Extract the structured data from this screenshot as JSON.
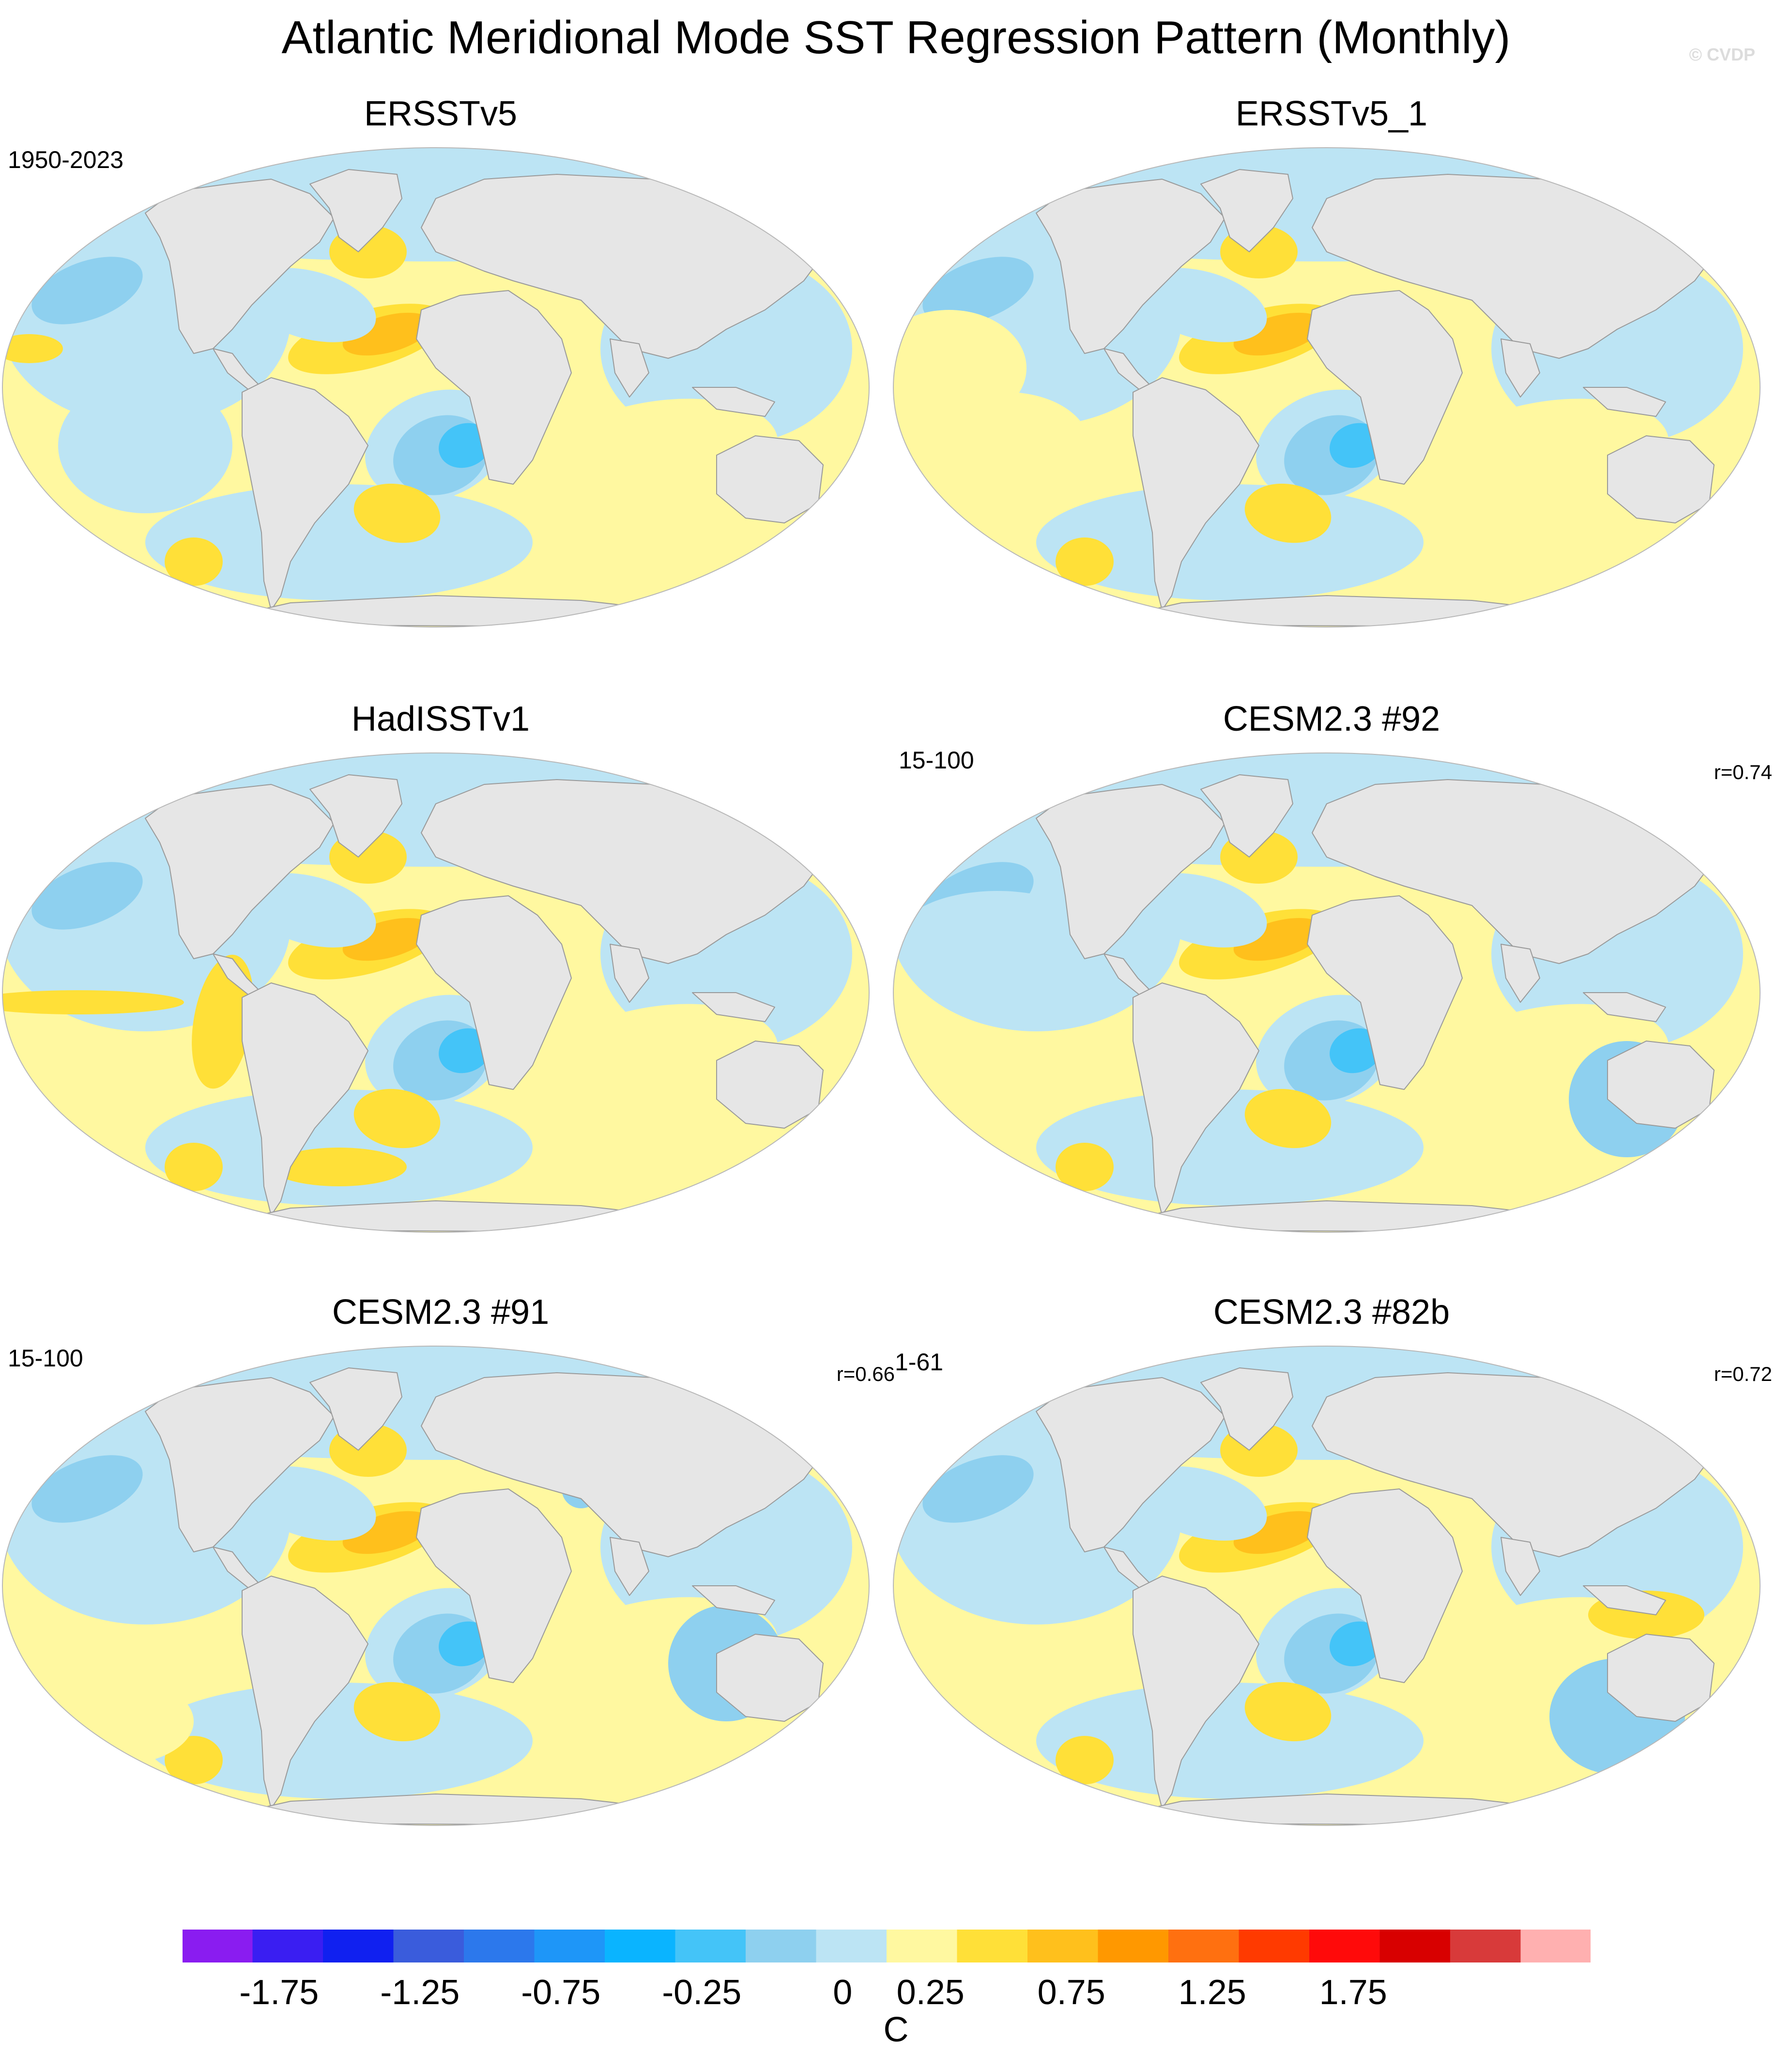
{
  "header": {
    "title": "Atlantic Meridional Mode SST Regression Pattern (Monthly)",
    "copyright": "© CVDP"
  },
  "panels": [
    {
      "title": "ERSSTv5",
      "period": "1950-2023",
      "corr": "",
      "variant": 0
    },
    {
      "title": "ERSSTv5_1",
      "period": "",
      "corr": "",
      "variant": 1
    },
    {
      "title": "HadISSTv1",
      "period": "",
      "corr": "",
      "variant": 2
    },
    {
      "title": "CESM2.3 #92",
      "period": "15-100",
      "corr": "r=0.74",
      "variant": 3
    },
    {
      "title": "CESM2.3 #91",
      "period": "15-100",
      "corr": "r=0.66",
      "variant": 4
    },
    {
      "title": "CESM2.3 #82b",
      "period": "1-61",
      "corr": "r=0.72",
      "variant": 5
    }
  ],
  "colorbar": {
    "unit": "C",
    "colors": [
      "#8a1cf0",
      "#3a1ef2",
      "#1020f0",
      "#3a5cdc",
      "#2c78ec",
      "#1e96f8",
      "#0ab4ff",
      "#44c4f8",
      "#8ed0ef",
      "#bce4f4",
      "#fff8a0",
      "#ffe038",
      "#ffc01c",
      "#ff9800",
      "#ff7010",
      "#ff3a00",
      "#ff0a0a",
      "#d80000",
      "#d83a3a",
      "#ffb0b0"
    ],
    "tick_labels": [
      "-1.75",
      "-1.25",
      "-0.75",
      "-0.25",
      "0",
      "0.25",
      "0.75",
      "1.25",
      "1.75"
    ]
  },
  "palette": {
    "land": "#e6e6e6",
    "coast": "#9a9a9a",
    "neutral_positive": "#fff8a0",
    "weak_positive": "#ffe038",
    "moderate_positive": "#ffc01c",
    "neutral_negative": "#bce4f4",
    "weak_negative": "#8ed0ef",
    "moderate_negative": "#44c4f8"
  }
}
